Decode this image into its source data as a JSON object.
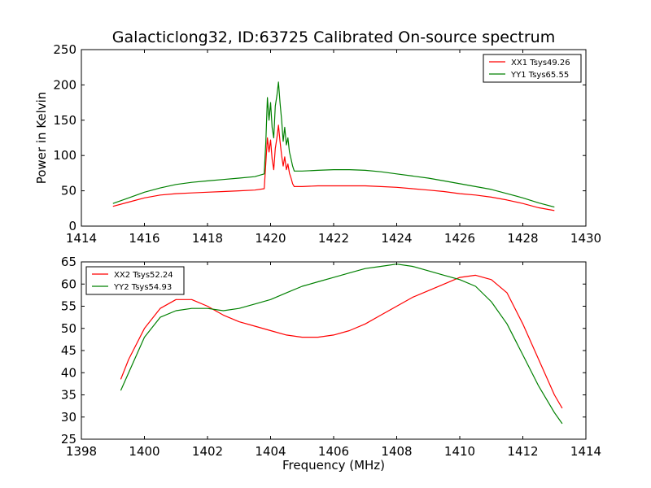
{
  "figure": {
    "title": "Galacticlong32, ID:63725 Calibrated On-source spectrum"
  },
  "chart_data": [
    {
      "type": "line",
      "title": "Galacticlong32, ID:63725 Calibrated On-source spectrum",
      "xlabel": "",
      "ylabel": "Power in Kelvin",
      "xlim": [
        1414,
        1430
      ],
      "ylim": [
        0,
        250
      ],
      "xticks": [
        "1414",
        "1416",
        "1418",
        "1420",
        "1422",
        "1424",
        "1426",
        "1428",
        "1430"
      ],
      "yticks": [
        "0",
        "50",
        "100",
        "150",
        "200",
        "250"
      ],
      "grid": false,
      "legend_position": "top-right",
      "series": [
        {
          "name": "XX1 Tsys49.26",
          "color": "#ff0000",
          "x": [
            1415.0,
            1415.5,
            1416.0,
            1416.5,
            1417.0,
            1417.5,
            1418.0,
            1418.5,
            1419.0,
            1419.5,
            1419.8,
            1419.85,
            1419.9,
            1419.95,
            1420.0,
            1420.05,
            1420.1,
            1420.15,
            1420.2,
            1420.25,
            1420.3,
            1420.35,
            1420.4,
            1420.45,
            1420.5,
            1420.55,
            1420.6,
            1420.65,
            1420.7,
            1420.75,
            1421.0,
            1421.5,
            1422.0,
            1422.5,
            1423.0,
            1423.5,
            1424.0,
            1424.5,
            1425.0,
            1425.5,
            1426.0,
            1426.5,
            1427.0,
            1427.5,
            1428.0,
            1428.5,
            1429.0
          ],
          "y": [
            28,
            34,
            40,
            44,
            46,
            47,
            48,
            49,
            50,
            51,
            53,
            90,
            125,
            105,
            122,
            95,
            80,
            110,
            125,
            143,
            120,
            100,
            85,
            98,
            80,
            88,
            75,
            68,
            60,
            56,
            56,
            57,
            57,
            57,
            57,
            56,
            55,
            53,
            51,
            49,
            46,
            44,
            41,
            37,
            32,
            26,
            22
          ]
        },
        {
          "name": "YY1 Tsys65.55",
          "color": "#008000",
          "x": [
            1415.0,
            1415.5,
            1416.0,
            1416.5,
            1417.0,
            1417.5,
            1418.0,
            1418.5,
            1419.0,
            1419.5,
            1419.8,
            1419.85,
            1419.9,
            1419.95,
            1420.0,
            1420.05,
            1420.1,
            1420.15,
            1420.2,
            1420.25,
            1420.3,
            1420.35,
            1420.4,
            1420.45,
            1420.5,
            1420.55,
            1420.6,
            1420.65,
            1420.7,
            1420.75,
            1421.0,
            1421.5,
            1422.0,
            1422.5,
            1423.0,
            1423.5,
            1424.0,
            1424.5,
            1425.0,
            1425.5,
            1426.0,
            1426.5,
            1427.0,
            1427.5,
            1428.0,
            1428.5,
            1429.0
          ],
          "y": [
            32,
            40,
            48,
            54,
            59,
            62,
            64,
            66,
            68,
            70,
            74,
            120,
            182,
            150,
            175,
            140,
            125,
            170,
            185,
            204,
            175,
            150,
            120,
            140,
            115,
            125,
            105,
            95,
            85,
            78,
            78,
            79,
            80,
            80,
            79,
            77,
            74,
            71,
            68,
            64,
            60,
            56,
            52,
            46,
            40,
            33,
            27
          ]
        }
      ]
    },
    {
      "type": "line",
      "title": "",
      "xlabel": "Frequency (MHz)",
      "ylabel": "",
      "xlim": [
        1398,
        1414
      ],
      "ylim": [
        25,
        65
      ],
      "xticks": [
        "1398",
        "1400",
        "1402",
        "1404",
        "1406",
        "1408",
        "1410",
        "1412",
        "1414"
      ],
      "yticks": [
        "25",
        "30",
        "35",
        "40",
        "45",
        "50",
        "55",
        "60",
        "65"
      ],
      "grid": false,
      "legend_position": "top-left",
      "series": [
        {
          "name": "XX2 Tsys52.24",
          "color": "#ff0000",
          "x": [
            1399.25,
            1399.5,
            1400.0,
            1400.5,
            1401.0,
            1401.5,
            1402.0,
            1402.5,
            1403.0,
            1403.5,
            1404.0,
            1404.5,
            1405.0,
            1405.5,
            1406.0,
            1406.5,
            1407.0,
            1407.5,
            1408.0,
            1408.5,
            1409.0,
            1409.5,
            1410.0,
            1410.5,
            1411.0,
            1411.5,
            1412.0,
            1412.5,
            1413.0,
            1413.25
          ],
          "y": [
            38.5,
            43,
            50,
            54.5,
            56.5,
            56.5,
            55,
            53,
            51.5,
            50.5,
            49.5,
            48.5,
            48,
            48,
            48.5,
            49.5,
            51,
            53,
            55,
            57,
            58.5,
            60,
            61.5,
            62,
            61,
            58,
            51,
            43,
            35,
            32
          ]
        },
        {
          "name": "YY2 Tsys54.93",
          "color": "#008000",
          "x": [
            1399.25,
            1399.5,
            1400.0,
            1400.5,
            1401.0,
            1401.5,
            1402.0,
            1402.5,
            1403.0,
            1403.5,
            1404.0,
            1404.5,
            1405.0,
            1405.5,
            1406.0,
            1406.5,
            1407.0,
            1407.5,
            1408.0,
            1408.5,
            1409.0,
            1409.5,
            1410.0,
            1410.5,
            1411.0,
            1411.5,
            1412.0,
            1412.5,
            1413.0,
            1413.25
          ],
          "y": [
            36,
            40,
            48,
            52.5,
            54,
            54.5,
            54.5,
            54,
            54.5,
            55.5,
            56.5,
            58,
            59.5,
            60.5,
            61.5,
            62.5,
            63.5,
            64,
            64.5,
            64,
            63,
            62,
            61,
            59.5,
            56,
            51,
            44,
            37,
            31,
            28.5
          ]
        }
      ]
    }
  ]
}
